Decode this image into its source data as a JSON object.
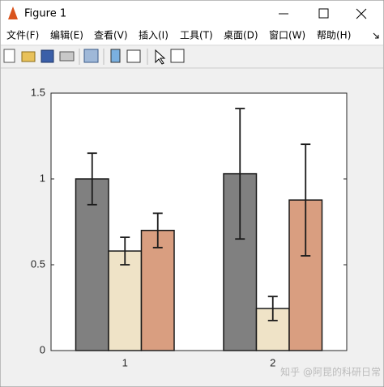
{
  "window": {
    "title": "Figure 1"
  },
  "menu": {
    "items": [
      "文件(F)",
      "编辑(E)",
      "查看(V)",
      "插入(I)",
      "工具(T)",
      "桌面(D)",
      "窗口(W)",
      "帮助(H)"
    ]
  },
  "watermark": "知乎 @阿昆的科研日常",
  "chart_data": {
    "type": "bar",
    "categories": [
      "1",
      "2"
    ],
    "series": [
      {
        "color": "#808080",
        "values": [
          1.0,
          1.03
        ],
        "errors": [
          0.15,
          0.38
        ]
      },
      {
        "color": "#efe3c7",
        "values": [
          0.58,
          0.245
        ],
        "errors": [
          0.08,
          0.07
        ]
      },
      {
        "color": "#d99e80",
        "values": [
          0.7,
          0.877
        ],
        "errors": [
          0.1,
          0.325
        ]
      }
    ],
    "ylim": [
      0,
      1.5
    ],
    "yticks": [
      0,
      0.5,
      1,
      1.5
    ]
  }
}
